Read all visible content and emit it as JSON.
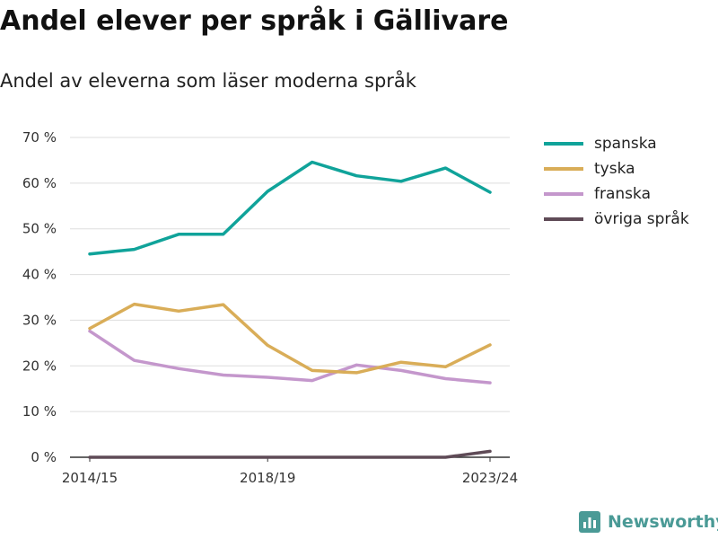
{
  "header": {
    "title": "Andel elever per språk i Gällivare",
    "subtitle": "Andel av eleverna som läser moderna språk"
  },
  "brand": {
    "name": "Newsworthy",
    "logo_icon": "newsworthy-logo-icon",
    "color": "#4a9a96"
  },
  "chart_data": {
    "type": "line",
    "title": "Andel elever per språk i Gällivare",
    "subtitle": "Andel av eleverna som läser moderna språk",
    "x": [
      "2014/15",
      "2015/16",
      "2016/17",
      "2017/18",
      "2018/19",
      "2019/20",
      "2020/21",
      "2021/22",
      "2022/23",
      "2023/24"
    ],
    "x_tick_labels": [
      "2014/15",
      "2018/19",
      "2023/24"
    ],
    "y_ticks": [
      0,
      10,
      20,
      30,
      40,
      50,
      60,
      70
    ],
    "y_tick_labels": [
      "0 %",
      "10 %",
      "20 %",
      "30 %",
      "40 %",
      "50 %",
      "60 %",
      "70 %"
    ],
    "ylim": [
      0,
      70
    ],
    "grid": "horizontal",
    "legend_position": "right",
    "series": [
      {
        "name": "spanska",
        "color": "#10a39a",
        "values": [
          44.5,
          45.5,
          48.8,
          48.8,
          58.2,
          64.6,
          61.6,
          60.4,
          63.3,
          58.0
        ]
      },
      {
        "name": "tyska",
        "color": "#d9ad58",
        "values": [
          28.2,
          33.5,
          32.0,
          33.4,
          24.5,
          19.0,
          18.5,
          20.8,
          19.8,
          24.6
        ]
      },
      {
        "name": "franska",
        "color": "#c497cc",
        "values": [
          27.6,
          21.2,
          19.4,
          18.0,
          17.5,
          16.8,
          20.2,
          19.0,
          17.2,
          16.3
        ]
      },
      {
        "name": "övriga språk",
        "color": "#5f4b57",
        "values": [
          0,
          0,
          0,
          0,
          0,
          0,
          0,
          0,
          0,
          1.3
        ]
      }
    ]
  }
}
